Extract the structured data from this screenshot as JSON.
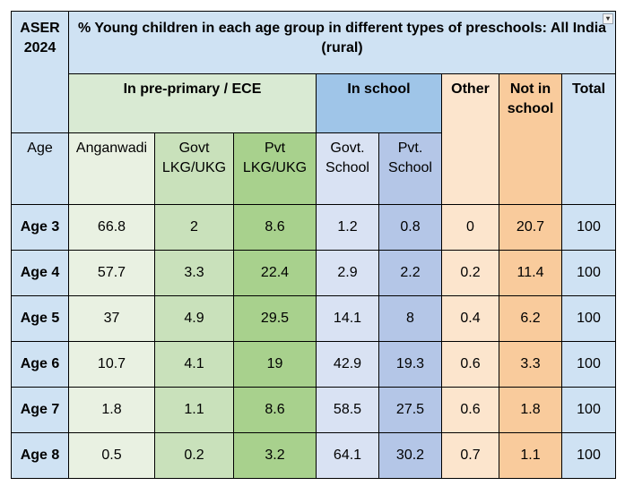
{
  "colors": {
    "blue_header": "#cfe2f3",
    "green_header": "#d9ead3",
    "col_anganwadi": "#e9f1e2",
    "col_govt_lkg": "#c9e1bb",
    "col_pvt_lkg": "#a8d18d",
    "blue_school_header": "#9fc5e8",
    "col_govt_school": "#d9e2f3",
    "col_pvt_school": "#b4c6e7",
    "col_other": "#fce5cd",
    "col_not_in_school": "#f9cb9c",
    "col_total": "#cfe2f3",
    "row_label": "#cfe2f3"
  },
  "corner": "ASER\n2024",
  "title": "% Young children in each age group in different types of preschools: All India (rural)",
  "filter_icon": "▾",
  "groups": {
    "preprimary": "In pre-primary / ECE",
    "inschool": "In school",
    "other": "Other",
    "notinschool": "Not in school",
    "total": "Total"
  },
  "subheaders": {
    "age": "Age",
    "anganwadi": "Anganwadi",
    "govt_lkg": "Govt LKG/UKG",
    "pvt_lkg": "Pvt LKG/UKG",
    "govt_school": "Govt. School",
    "pvt_school": "Pvt. School"
  },
  "rows": [
    {
      "age": "Age 3",
      "values": [
        "66.8",
        "2",
        "8.6",
        "1.2",
        "0.8",
        "0",
        "20.7",
        "100"
      ]
    },
    {
      "age": "Age 4",
      "values": [
        "57.7",
        "3.3",
        "22.4",
        "2.9",
        "2.2",
        "0.2",
        "11.4",
        "100"
      ]
    },
    {
      "age": "Age 5",
      "values": [
        "37",
        "4.9",
        "29.5",
        "14.1",
        "8",
        "0.4",
        "6.2",
        "100"
      ]
    },
    {
      "age": "Age 6",
      "values": [
        "10.7",
        "4.1",
        "19",
        "42.9",
        "19.3",
        "0.6",
        "3.3",
        "100"
      ]
    },
    {
      "age": "Age 7",
      "values": [
        "1.8",
        "1.1",
        "8.6",
        "58.5",
        "27.5",
        "0.6",
        "1.8",
        "100"
      ]
    },
    {
      "age": "Age 8",
      "values": [
        "0.5",
        "0.2",
        "3.2",
        "64.1",
        "30.2",
        "0.7",
        "1.1",
        "100"
      ]
    }
  ]
}
